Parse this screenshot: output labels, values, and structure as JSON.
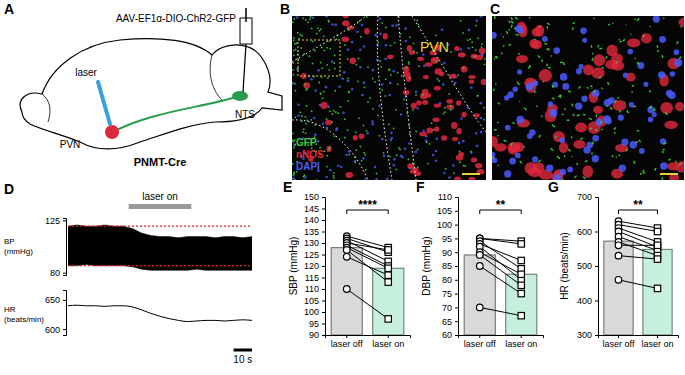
{
  "chart_data": [
    {
      "panel": "D",
      "type": "area",
      "ylabel": [
        "BP",
        "(mmHg)"
      ],
      "x": [
        0,
        5,
        10,
        15,
        20,
        25,
        30,
        35,
        40,
        45,
        50,
        55,
        60,
        65,
        70,
        75,
        80,
        85,
        90,
        95,
        100
      ],
      "high": [
        120,
        121,
        120,
        120,
        121,
        120,
        120,
        118,
        114,
        112,
        111,
        111,
        110,
        111,
        111,
        111,
        110,
        111,
        111,
        110,
        111
      ],
      "low": [
        86,
        86,
        87,
        86,
        86,
        86,
        86,
        85,
        83,
        82,
        82,
        82,
        82,
        82,
        83,
        82,
        82,
        82,
        82,
        82,
        82
      ],
      "xlim": [
        0,
        100
      ],
      "ylim": [
        78,
        127
      ],
      "yticks": [
        80,
        125
      ],
      "tick_labels": "y",
      "reference_lines": [
        120,
        86
      ],
      "laser": {
        "label": "laser on",
        "range": [
          33,
          67
        ]
      }
    },
    {
      "type": "line",
      "ylabel": [
        "HR",
        "(beats/min)"
      ],
      "x": [
        0,
        5,
        10,
        15,
        20,
        25,
        30,
        35,
        40,
        45,
        50,
        55,
        60,
        65,
        70,
        75,
        80,
        85,
        90,
        95,
        100
      ],
      "values": [
        640,
        641,
        640,
        640,
        639,
        640,
        640,
        638,
        633,
        627,
        622,
        618,
        615,
        613,
        614,
        615,
        615,
        614,
        615,
        616,
        615
      ],
      "xlim": [
        0,
        100
      ],
      "ylim": [
        590,
        667
      ],
      "yticks": [
        600,
        650
      ],
      "tick_labels": "y",
      "scale_bar": {
        "value": 10,
        "label": "10 s"
      }
    },
    {
      "panel": "E",
      "type": "bar",
      "categories": [
        "laser off",
        "laser on"
      ],
      "values": [
        128,
        119
      ],
      "colors": [
        "#d9d9d9",
        "#c6f0dc"
      ],
      "ylabel": "SBP (mmHg)",
      "ylim": [
        90,
        150
      ],
      "yticks": [
        90,
        95,
        100,
        105,
        110,
        115,
        120,
        125,
        130,
        135,
        140,
        145,
        150
      ],
      "pairs": [
        [
          133,
          128
        ],
        [
          132,
          126
        ],
        [
          131,
          122
        ],
        [
          130,
          127
        ],
        [
          129,
          120
        ],
        [
          128,
          119
        ],
        [
          127,
          113
        ],
        [
          124,
          116
        ],
        [
          110,
          97
        ]
      ],
      "annotation": "****"
    },
    {
      "panel": "F",
      "type": "bar",
      "categories": [
        "laser off",
        "laser on"
      ],
      "values": [
        89,
        82
      ],
      "colors": [
        "#d9d9d9",
        "#c6f0dc"
      ],
      "ylabel": "DBP (mmHg)",
      "ylim": [
        60,
        110
      ],
      "yticks": [
        60,
        65,
        70,
        75,
        80,
        85,
        90,
        95,
        100,
        105,
        110
      ],
      "pairs": [
        [
          95,
          94
        ],
        [
          95,
          93
        ],
        [
          94,
          84
        ],
        [
          93,
          87
        ],
        [
          92,
          80
        ],
        [
          90,
          82
        ],
        [
          89,
          78
        ],
        [
          85,
          75
        ],
        [
          70,
          67
        ]
      ],
      "annotation": "**"
    },
    {
      "panel": "G",
      "type": "bar",
      "categories": [
        "laser off",
        "laser on"
      ],
      "values": [
        572,
        548
      ],
      "colors": [
        "#d9d9d9",
        "#c6f0dc"
      ],
      "ylabel": "HR (beats/min)",
      "ylim": [
        300,
        700
      ],
      "yticks": [
        300,
        400,
        500,
        600,
        700
      ],
      "pairs": [
        [
          630,
          610
        ],
        [
          620,
          600
        ],
        [
          610,
          570
        ],
        [
          600,
          555
        ],
        [
          585,
          545
        ],
        [
          570,
          530
        ],
        [
          560,
          560
        ],
        [
          530,
          520
        ],
        [
          460,
          435
        ]
      ],
      "annotation": "**"
    }
  ],
  "schematic": {
    "panel": "A",
    "vector": "AAV-EF1α-DIO-ChR2-GFP",
    "laser": "laser",
    "source": "PVN",
    "target": "NTS",
    "mouse_line": "PNMT-Cre"
  },
  "micrographs": [
    {
      "panel": "B",
      "region": "PVN",
      "channels": [
        {
          "name": "GFP",
          "color": "#3cd23c"
        },
        {
          "name": "nNOS",
          "color": "#e0283c"
        },
        {
          "name": "DAPI",
          "color": "#4a5cff"
        }
      ]
    },
    {
      "panel": "C"
    }
  ]
}
